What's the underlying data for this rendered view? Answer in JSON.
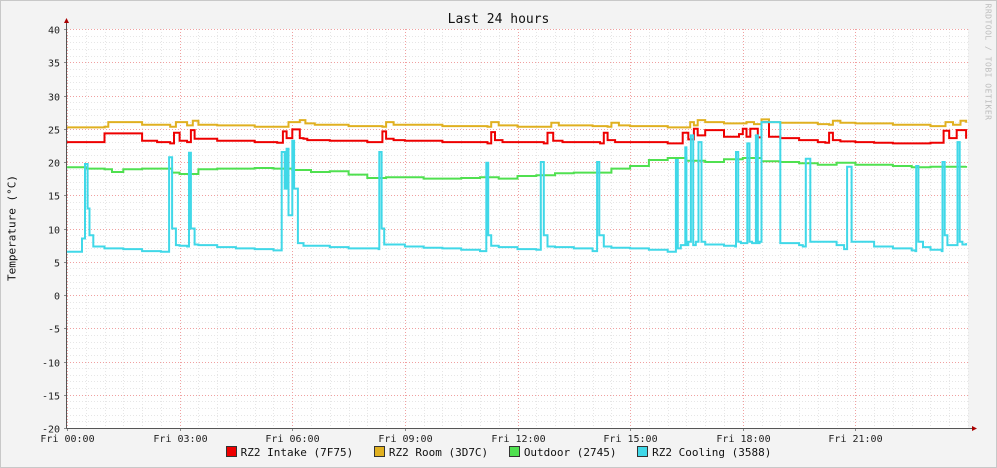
{
  "chart_data": {
    "type": "line",
    "title": "Last 24 hours",
    "ylabel": "Temperature (°C)",
    "xlabel": "",
    "watermark": "RRDTOOL / TOBI OETIKER",
    "ylim": [
      -20,
      40
    ],
    "yticks": [
      40,
      35,
      30,
      25,
      20,
      15,
      10,
      5,
      0,
      -5,
      -10,
      -15,
      -20
    ],
    "xlim": [
      0,
      24
    ],
    "xticks": [
      {
        "hour": 0,
        "label": "Fri 00:00"
      },
      {
        "hour": 3,
        "label": "Fri 03:00"
      },
      {
        "hour": 6,
        "label": "Fri 06:00"
      },
      {
        "hour": 9,
        "label": "Fri 09:00"
      },
      {
        "hour": 12,
        "label": "Fri 12:00"
      },
      {
        "hour": 15,
        "label": "Fri 15:00"
      },
      {
        "hour": 18,
        "label": "Fri 18:00"
      },
      {
        "hour": 21,
        "label": "Fri 21:00"
      }
    ],
    "grid": true,
    "legend_position": "bottom",
    "series": [
      {
        "name": "RZ2 Intake (7F75)",
        "color": "#ee0000",
        "x": [
          0,
          0.5,
          1.0,
          2.0,
          2.4,
          2.6,
          2.75,
          2.85,
          3.0,
          3.2,
          3.3,
          3.4,
          4.0,
          5.0,
          5.6,
          5.75,
          5.85,
          6.0,
          6.2,
          6.3,
          6.4,
          7.0,
          8.0,
          8.3,
          8.4,
          8.5,
          8.7,
          9.0,
          10.0,
          11.2,
          11.3,
          11.4,
          11.6,
          12.0,
          12.7,
          12.8,
          12.95,
          13.2,
          14.0,
          14.2,
          14.3,
          14.4,
          14.6,
          15.0,
          16.0,
          16.3,
          16.4,
          16.55,
          16.7,
          16.8,
          17.0,
          17.5,
          17.9,
          18.0,
          18.1,
          18.2,
          18.4,
          18.5,
          18.7,
          19.0,
          19.5,
          20.0,
          20.2,
          20.3,
          20.4,
          20.6,
          21.0,
          21.5,
          22.0,
          22.5,
          23.0,
          23.2,
          23.35,
          23.5,
          23.7,
          23.95
        ],
        "y": [
          23.0,
          23.0,
          24.3,
          23.2,
          23.0,
          23.0,
          22.8,
          24.4,
          23.2,
          23.0,
          24.8,
          23.5,
          23.2,
          23.0,
          22.9,
          24.6,
          23.6,
          24.9,
          23.6,
          23.5,
          23.3,
          23.2,
          23.0,
          23.0,
          24.6,
          23.5,
          23.3,
          23.2,
          23.0,
          22.8,
          24.5,
          23.3,
          23.0,
          23.0,
          22.8,
          24.4,
          23.2,
          23.0,
          23.0,
          22.8,
          24.4,
          23.3,
          23.0,
          23.0,
          22.8,
          22.8,
          24.4,
          23.4,
          25.0,
          24.0,
          24.8,
          23.8,
          24.2,
          25.0,
          23.8,
          25.0,
          23.7,
          26.0,
          23.8,
          23.6,
          23.3,
          23.0,
          22.9,
          24.4,
          23.3,
          23.1,
          23.0,
          22.9,
          22.8,
          22.8,
          22.9,
          22.9,
          24.7,
          23.6,
          24.8,
          23.5
        ]
      },
      {
        "name": "RZ2 Room (3D7C)",
        "color": "#e0b020",
        "x": [
          0,
          0.5,
          1.0,
          1.1,
          2.0,
          2.75,
          2.9,
          3.2,
          3.35,
          3.5,
          4.0,
          5.0,
          5.75,
          5.9,
          6.2,
          6.35,
          6.6,
          7.5,
          8.4,
          8.5,
          8.7,
          10.0,
          11.2,
          11.3,
          11.5,
          12.0,
          12.8,
          12.9,
          13.1,
          14.0,
          14.4,
          14.5,
          14.7,
          15.0,
          16.0,
          16.45,
          16.6,
          16.7,
          16.8,
          17.0,
          17.5,
          18.0,
          18.1,
          18.3,
          18.5,
          18.7,
          19.0,
          20.0,
          20.3,
          20.4,
          20.6,
          21.0,
          22.0,
          23.0,
          23.3,
          23.4,
          23.6,
          23.8,
          23.95
        ],
        "y": [
          25.2,
          25.2,
          25.3,
          26.0,
          25.6,
          25.3,
          26.0,
          25.5,
          26.2,
          25.6,
          25.5,
          25.3,
          25.3,
          26.0,
          26.3,
          25.8,
          25.6,
          25.4,
          25.3,
          26.0,
          25.6,
          25.4,
          25.3,
          26.0,
          25.5,
          25.3,
          25.3,
          25.9,
          25.5,
          25.4,
          25.3,
          25.9,
          25.5,
          25.4,
          25.2,
          25.2,
          26.0,
          25.5,
          26.3,
          26.0,
          25.8,
          25.8,
          26.0,
          25.7,
          26.4,
          26.0,
          25.9,
          25.7,
          25.6,
          26.2,
          25.9,
          25.8,
          25.6,
          25.4,
          25.4,
          26.0,
          25.6,
          26.2,
          25.9
        ]
      },
      {
        "name": "Outdoor (2745)",
        "color": "#50e050",
        "x": [
          0,
          0.5,
          1.0,
          1.2,
          1.5,
          2.0,
          2.5,
          2.8,
          3.0,
          3.5,
          4.0,
          5.0,
          5.5,
          6.0,
          6.5,
          7.0,
          7.5,
          8.0,
          8.5,
          9.0,
          9.5,
          10.0,
          10.5,
          11.0,
          11.5,
          12.0,
          12.5,
          13.0,
          13.5,
          14.0,
          14.5,
          15.0,
          15.5,
          16.0,
          16.5,
          17.0,
          17.5,
          18.0,
          18.5,
          19.0,
          19.5,
          20.0,
          20.5,
          21.0,
          21.5,
          22.0,
          22.5,
          23.0,
          23.5,
          23.95
        ],
        "y": [
          19.2,
          19.0,
          18.9,
          18.5,
          18.9,
          19.0,
          19.0,
          18.4,
          18.2,
          18.9,
          19.0,
          19.1,
          19.0,
          18.8,
          18.5,
          18.6,
          18.1,
          17.6,
          17.7,
          17.7,
          17.5,
          17.5,
          17.6,
          17.7,
          17.5,
          17.9,
          18.0,
          18.3,
          18.4,
          18.4,
          19.0,
          19.4,
          20.3,
          20.6,
          20.2,
          20.0,
          20.4,
          20.6,
          20.1,
          20.0,
          19.8,
          19.6,
          19.9,
          19.6,
          19.6,
          19.4,
          19.2,
          19.3,
          19.3,
          19.4
        ]
      },
      {
        "name": "RZ2 Cooling (3588)",
        "color": "#40d8e8",
        "x": [
          0,
          0.38,
          0.4,
          0.48,
          0.55,
          0.6,
          0.7,
          1.0,
          1.5,
          2.0,
          2.5,
          2.7,
          2.72,
          2.8,
          2.9,
          3.0,
          3.2,
          3.25,
          3.3,
          3.4,
          3.5,
          4.0,
          4.5,
          5.0,
          5.5,
          5.7,
          5.72,
          5.8,
          5.85,
          5.9,
          6.0,
          6.05,
          6.15,
          6.3,
          7.0,
          7.5,
          8.0,
          8.3,
          8.32,
          8.38,
          8.45,
          9.0,
          9.5,
          10.0,
          10.5,
          11.0,
          11.15,
          11.17,
          11.22,
          11.3,
          11.5,
          12.0,
          12.5,
          12.6,
          12.62,
          12.7,
          12.8,
          13.0,
          13.5,
          14.0,
          14.1,
          14.12,
          14.18,
          14.3,
          14.5,
          15.0,
          15.5,
          16.0,
          16.2,
          16.22,
          16.27,
          16.35,
          16.45,
          16.47,
          16.5,
          16.55,
          16.6,
          16.62,
          16.68,
          16.75,
          16.8,
          16.82,
          16.9,
          17.0,
          17.5,
          17.8,
          17.82,
          17.88,
          17.95,
          18.1,
          18.12,
          18.18,
          18.25,
          18.3,
          18.35,
          18.4,
          18.45,
          18.5,
          19.0,
          19.5,
          19.6,
          19.62,
          19.68,
          19.8,
          20.5,
          20.7,
          20.72,
          20.78,
          20.9,
          21.5,
          22.0,
          22.5,
          22.6,
          22.62,
          22.68,
          22.8,
          23.0,
          23.3,
          23.32,
          23.38,
          23.45,
          23.7,
          23.72,
          23.78,
          23.85,
          23.95
        ],
        "y": [
          6.5,
          6.5,
          8.5,
          19.7,
          13.0,
          9.0,
          7.3,
          7.0,
          6.9,
          6.6,
          6.5,
          6.5,
          20.7,
          10.0,
          7.5,
          7.4,
          7.3,
          21.4,
          10.0,
          7.6,
          7.5,
          7.2,
          7.0,
          6.9,
          6.7,
          6.7,
          21.5,
          16.0,
          22.0,
          12.0,
          23.2,
          16.0,
          7.8,
          7.4,
          7.2,
          7.0,
          7.0,
          6.9,
          21.5,
          10.0,
          7.6,
          7.3,
          7.1,
          7.0,
          6.8,
          6.6,
          6.6,
          19.9,
          9.0,
          7.4,
          7.2,
          6.9,
          6.8,
          6.8,
          20.0,
          9.0,
          7.3,
          7.2,
          7.0,
          6.6,
          6.6,
          20.0,
          9.0,
          7.3,
          7.1,
          7.0,
          6.8,
          6.5,
          6.5,
          20.3,
          7.0,
          7.5,
          7.5,
          22.2,
          7.5,
          8.0,
          8.0,
          24.0,
          7.5,
          8.0,
          8.0,
          23.0,
          8.0,
          7.6,
          7.4,
          7.3,
          21.5,
          8.0,
          7.8,
          7.8,
          22.8,
          8.0,
          7.8,
          7.8,
          24.0,
          7.8,
          8.0,
          26.0,
          7.8,
          7.5,
          7.3,
          7.3,
          20.5,
          8.0,
          7.5,
          6.9,
          6.9,
          19.3,
          8.0,
          7.3,
          7.0,
          6.7,
          6.6,
          19.4,
          8.0,
          7.2,
          6.8,
          6.6,
          20.0,
          9.0,
          7.5,
          7.5,
          23.0,
          8.0,
          7.6,
          7.8
        ]
      }
    ]
  }
}
